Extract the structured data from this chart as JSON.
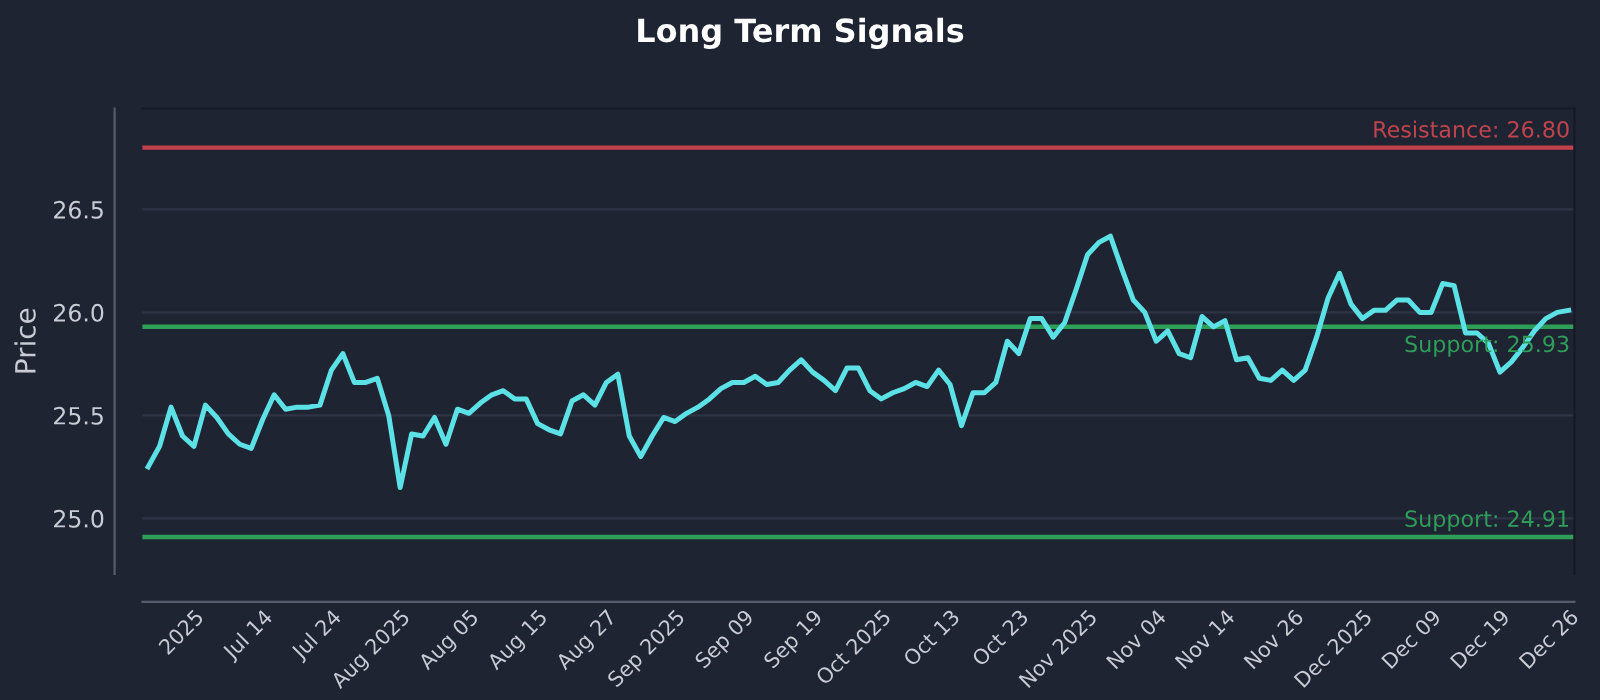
{
  "chart_data": {
    "type": "line",
    "title": "Long Term Signals",
    "ylabel": "Price",
    "categories": [
      null,
      null,
      null,
      null,
      "2025",
      null,
      null,
      null,
      null,
      null,
      "Jul 14",
      null,
      null,
      null,
      null,
      null,
      "Jul 24",
      null,
      null,
      null,
      null,
      null,
      "Aug 2025",
      null,
      null,
      null,
      null,
      null,
      "Aug 05",
      null,
      null,
      null,
      null,
      null,
      "Aug 15",
      null,
      null,
      null,
      null,
      null,
      "Aug 27",
      null,
      null,
      null,
      null,
      null,
      "Sep 2025",
      null,
      null,
      null,
      null,
      null,
      "Sep 09",
      null,
      null,
      null,
      null,
      null,
      "Sep 19",
      null,
      null,
      null,
      null,
      null,
      "Oct 2025",
      null,
      null,
      null,
      null,
      null,
      "Oct 13",
      null,
      null,
      null,
      null,
      null,
      "Oct 23",
      null,
      null,
      null,
      null,
      null,
      "Nov 2025",
      null,
      null,
      null,
      null,
      null,
      "Nov 04",
      null,
      null,
      null,
      null,
      null,
      "Nov 14",
      null,
      null,
      null,
      null,
      null,
      "Nov 26",
      null,
      null,
      null,
      null,
      null,
      "Dec 2025",
      null,
      null,
      null,
      null,
      null,
      "Dec 09",
      null,
      null,
      null,
      null,
      null,
      "Dec 19",
      null,
      null,
      null,
      null,
      null,
      "Dec 26"
    ],
    "series": [
      {
        "color": "#5ce1e6",
        "values": [
          25.25,
          25.35,
          25.54,
          25.4,
          25.35,
          25.55,
          25.49,
          25.41,
          25.36,
          25.34,
          25.48,
          25.6,
          25.53,
          25.54,
          25.54,
          25.55,
          25.72,
          25.8,
          25.66,
          25.66,
          25.68,
          25.5,
          25.15,
          25.41,
          25.4,
          25.49,
          25.36,
          25.53,
          25.51,
          25.56,
          25.6,
          25.62,
          25.58,
          25.58,
          25.46,
          25.43,
          25.41,
          25.57,
          25.6,
          25.55,
          25.66,
          25.7,
          25.4,
          25.3,
          25.4,
          25.49,
          25.47,
          25.51,
          25.54,
          25.58,
          25.63,
          25.66,
          25.66,
          25.69,
          25.65,
          25.66,
          25.72,
          25.77,
          25.71,
          25.67,
          25.62,
          25.73,
          25.73,
          25.62,
          25.58,
          25.61,
          25.63,
          25.66,
          25.64,
          25.72,
          25.65,
          25.45,
          25.61,
          25.61,
          25.66,
          25.86,
          25.8,
          25.97,
          25.97,
          25.88,
          25.95,
          26.11,
          26.28,
          26.34,
          26.37,
          26.21,
          26.06,
          26.0,
          25.86,
          25.91,
          25.8,
          25.78,
          25.98,
          25.93,
          25.96,
          25.77,
          25.78,
          25.68,
          25.67,
          25.72,
          25.67,
          25.72,
          25.88,
          26.07,
          26.19,
          26.04,
          25.97,
          26.01,
          26.01,
          26.06,
          26.06,
          26.0,
          26.0,
          26.14,
          26.13,
          25.9,
          25.9,
          25.85,
          25.71,
          25.76,
          25.83,
          25.91,
          25.97,
          26.0,
          26.01
        ]
      }
    ],
    "ylim": [
      24.73,
      26.99
    ],
    "yticks": [
      {
        "value": 25,
        "label": "25.0"
      },
      {
        "value": 25.5,
        "label": "25.5"
      },
      {
        "value": 26,
        "label": "26.0"
      },
      {
        "value": 26.5,
        "label": "26.5"
      }
    ],
    "grid": "y",
    "ref_lines": [
      {
        "axis": "y",
        "value": 26.8,
        "label": "Resistance: 26.80",
        "color": "#c0434c"
      },
      {
        "axis": "y",
        "value": 25.93,
        "label": "Support: 25.93",
        "color": "#2e9e58"
      },
      {
        "axis": "y",
        "value": 24.91,
        "label": "Support: 24.91",
        "color": "#2e9e58"
      }
    ]
  }
}
